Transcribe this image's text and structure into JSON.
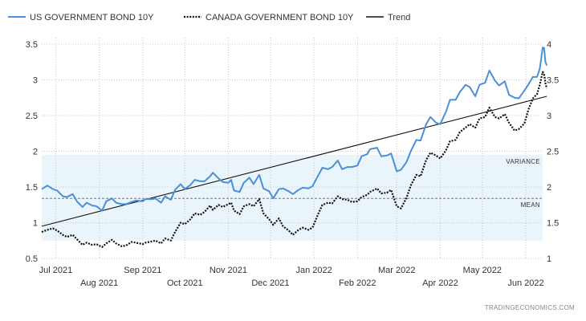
{
  "chart_data": {
    "type": "line",
    "x_start": "2021-06-21",
    "x_end": "2022-06-13",
    "x_ticks": [
      {
        "date": "2021-07-01",
        "label": "Jul 2021",
        "row": 1
      },
      {
        "date": "2021-08-01",
        "label": "Aug 2021",
        "row": 2
      },
      {
        "date": "2021-09-01",
        "label": "Sep 2021",
        "row": 1
      },
      {
        "date": "2021-10-01",
        "label": "Oct 2021",
        "row": 2
      },
      {
        "date": "2021-11-01",
        "label": "Nov 2021",
        "row": 1
      },
      {
        "date": "2021-12-01",
        "label": "Dec 2021",
        "row": 2
      },
      {
        "date": "2022-01-01",
        "label": "Jan 2022",
        "row": 1
      },
      {
        "date": "2022-02-01",
        "label": "Feb 2022",
        "row": 2
      },
      {
        "date": "2022-03-01",
        "label": "Mar 2022",
        "row": 1
      },
      {
        "date": "2022-04-01",
        "label": "Apr 2022",
        "row": 2
      },
      {
        "date": "2022-05-01",
        "label": "May 2022",
        "row": 1
      },
      {
        "date": "2022-06-01",
        "label": "Jun 2022",
        "row": 2
      }
    ],
    "y_left": {
      "min": 0.5,
      "max": 3.5,
      "ticks": [
        "0.5",
        "1",
        "1.5",
        "2",
        "2.5",
        "3",
        "3.5"
      ]
    },
    "y_right": {
      "min": 1,
      "max": 4,
      "ticks": [
        "1",
        "1.5",
        "2",
        "2.5",
        "3",
        "3.5",
        "4"
      ]
    },
    "grid": true,
    "legend_position": "top-left",
    "variance_band": {
      "low": 0.75,
      "high": 1.95,
      "label": "VARIANCE"
    },
    "mean": {
      "value": 1.34,
      "label": "MEAN"
    },
    "series": [
      {
        "name": "US GOVERNMENT BOND 10Y",
        "axis": "left",
        "color": "#4a90d9",
        "style": "solid",
        "points": [
          [
            "2021-06-21",
            1.47
          ],
          [
            "2021-06-25",
            1.52
          ],
          [
            "2021-06-29",
            1.47
          ],
          [
            "2021-07-02",
            1.45
          ],
          [
            "2021-07-06",
            1.37
          ],
          [
            "2021-07-09",
            1.36
          ],
          [
            "2021-07-13",
            1.4
          ],
          [
            "2021-07-16",
            1.3
          ],
          [
            "2021-07-20",
            1.22
          ],
          [
            "2021-07-23",
            1.28
          ],
          [
            "2021-07-27",
            1.24
          ],
          [
            "2021-07-30",
            1.23
          ],
          [
            "2021-08-03",
            1.17
          ],
          [
            "2021-08-06",
            1.3
          ],
          [
            "2021-08-10",
            1.34
          ],
          [
            "2021-08-13",
            1.28
          ],
          [
            "2021-08-17",
            1.26
          ],
          [
            "2021-08-20",
            1.26
          ],
          [
            "2021-08-24",
            1.29
          ],
          [
            "2021-08-27",
            1.31
          ],
          [
            "2021-09-01",
            1.3
          ],
          [
            "2021-09-03",
            1.33
          ],
          [
            "2021-09-08",
            1.33
          ],
          [
            "2021-09-10",
            1.34
          ],
          [
            "2021-09-14",
            1.28
          ],
          [
            "2021-09-17",
            1.37
          ],
          [
            "2021-09-21",
            1.32
          ],
          [
            "2021-09-24",
            1.46
          ],
          [
            "2021-09-28",
            1.54
          ],
          [
            "2021-10-01",
            1.47
          ],
          [
            "2021-10-05",
            1.53
          ],
          [
            "2021-10-08",
            1.6
          ],
          [
            "2021-10-12",
            1.58
          ],
          [
            "2021-10-15",
            1.58
          ],
          [
            "2021-10-19",
            1.65
          ],
          [
            "2021-10-21",
            1.7
          ],
          [
            "2021-10-25",
            1.62
          ],
          [
            "2021-10-28",
            1.57
          ],
          [
            "2021-11-01",
            1.56
          ],
          [
            "2021-11-03",
            1.6
          ],
          [
            "2021-11-05",
            1.45
          ],
          [
            "2021-11-09",
            1.43
          ],
          [
            "2021-11-12",
            1.56
          ],
          [
            "2021-11-16",
            1.63
          ],
          [
            "2021-11-19",
            1.54
          ],
          [
            "2021-11-23",
            1.67
          ],
          [
            "2021-11-26",
            1.48
          ],
          [
            "2021-11-30",
            1.44
          ],
          [
            "2021-12-03",
            1.34
          ],
          [
            "2021-12-07",
            1.47
          ],
          [
            "2021-12-10",
            1.48
          ],
          [
            "2021-12-14",
            1.44
          ],
          [
            "2021-12-17",
            1.4
          ],
          [
            "2021-12-21",
            1.46
          ],
          [
            "2021-12-24",
            1.49
          ],
          [
            "2021-12-28",
            1.48
          ],
          [
            "2021-12-31",
            1.51
          ],
          [
            "2022-01-04",
            1.66
          ],
          [
            "2022-01-07",
            1.77
          ],
          [
            "2022-01-11",
            1.75
          ],
          [
            "2022-01-14",
            1.78
          ],
          [
            "2022-01-18",
            1.87
          ],
          [
            "2022-01-21",
            1.75
          ],
          [
            "2022-01-25",
            1.78
          ],
          [
            "2022-01-28",
            1.78
          ],
          [
            "2022-02-01",
            1.8
          ],
          [
            "2022-02-04",
            1.93
          ],
          [
            "2022-02-08",
            1.96
          ],
          [
            "2022-02-10",
            2.03
          ],
          [
            "2022-02-15",
            2.05
          ],
          [
            "2022-02-18",
            1.93
          ],
          [
            "2022-02-22",
            1.94
          ],
          [
            "2022-02-25",
            1.97
          ],
          [
            "2022-03-01",
            1.72
          ],
          [
            "2022-03-04",
            1.74
          ],
          [
            "2022-03-08",
            1.85
          ],
          [
            "2022-03-11",
            2.0
          ],
          [
            "2022-03-15",
            2.16
          ],
          [
            "2022-03-18",
            2.15
          ],
          [
            "2022-03-22",
            2.38
          ],
          [
            "2022-03-25",
            2.48
          ],
          [
            "2022-03-29",
            2.4
          ],
          [
            "2022-04-01",
            2.38
          ],
          [
            "2022-04-05",
            2.55
          ],
          [
            "2022-04-08",
            2.72
          ],
          [
            "2022-04-12",
            2.72
          ],
          [
            "2022-04-15",
            2.83
          ],
          [
            "2022-04-19",
            2.93
          ],
          [
            "2022-04-22",
            2.9
          ],
          [
            "2022-04-26",
            2.77
          ],
          [
            "2022-04-29",
            2.93
          ],
          [
            "2022-05-03",
            2.96
          ],
          [
            "2022-05-06",
            3.13
          ],
          [
            "2022-05-10",
            2.99
          ],
          [
            "2022-05-13",
            2.92
          ],
          [
            "2022-05-17",
            2.98
          ],
          [
            "2022-05-20",
            2.79
          ],
          [
            "2022-05-24",
            2.75
          ],
          [
            "2022-05-27",
            2.74
          ],
          [
            "2022-05-31",
            2.85
          ],
          [
            "2022-06-03",
            2.94
          ],
          [
            "2022-06-06",
            3.04
          ],
          [
            "2022-06-09",
            3.04
          ],
          [
            "2022-06-11",
            3.16
          ],
          [
            "2022-06-13",
            3.45
          ],
          [
            "2022-06-14",
            3.45
          ],
          [
            "2022-06-15",
            3.25
          ],
          [
            "2022-06-16",
            3.2
          ]
        ]
      },
      {
        "name": "CANADA GOVERNMENT BOND 10Y",
        "axis": "right",
        "color": "#111111",
        "style": "dotted",
        "points": [
          [
            "2021-06-21",
            1.37
          ],
          [
            "2021-06-25",
            1.4
          ],
          [
            "2021-06-29",
            1.42
          ],
          [
            "2021-07-02",
            1.39
          ],
          [
            "2021-07-06",
            1.33
          ],
          [
            "2021-07-09",
            1.3
          ],
          [
            "2021-07-13",
            1.33
          ],
          [
            "2021-07-16",
            1.27
          ],
          [
            "2021-07-20",
            1.19
          ],
          [
            "2021-07-23",
            1.22
          ],
          [
            "2021-07-27",
            1.19
          ],
          [
            "2021-07-30",
            1.2
          ],
          [
            "2021-08-03",
            1.16
          ],
          [
            "2021-08-06",
            1.21
          ],
          [
            "2021-08-10",
            1.26
          ],
          [
            "2021-08-13",
            1.21
          ],
          [
            "2021-08-17",
            1.17
          ],
          [
            "2021-08-20",
            1.18
          ],
          [
            "2021-08-24",
            1.23
          ],
          [
            "2021-08-27",
            1.22
          ],
          [
            "2021-09-01",
            1.2
          ],
          [
            "2021-09-03",
            1.22
          ],
          [
            "2021-09-08",
            1.24
          ],
          [
            "2021-09-10",
            1.25
          ],
          [
            "2021-09-14",
            1.21
          ],
          [
            "2021-09-17",
            1.28
          ],
          [
            "2021-09-21",
            1.25
          ],
          [
            "2021-09-24",
            1.37
          ],
          [
            "2021-09-28",
            1.5
          ],
          [
            "2021-10-01",
            1.48
          ],
          [
            "2021-10-05",
            1.55
          ],
          [
            "2021-10-08",
            1.63
          ],
          [
            "2021-10-12",
            1.61
          ],
          [
            "2021-10-15",
            1.65
          ],
          [
            "2021-10-19",
            1.74
          ],
          [
            "2021-10-21",
            1.68
          ],
          [
            "2021-10-25",
            1.75
          ],
          [
            "2021-10-28",
            1.72
          ],
          [
            "2021-11-01",
            1.76
          ],
          [
            "2021-11-03",
            1.78
          ],
          [
            "2021-11-05",
            1.67
          ],
          [
            "2021-11-09",
            1.62
          ],
          [
            "2021-11-12",
            1.73
          ],
          [
            "2021-11-16",
            1.76
          ],
          [
            "2021-11-19",
            1.73
          ],
          [
            "2021-11-23",
            1.83
          ],
          [
            "2021-11-26",
            1.63
          ],
          [
            "2021-11-30",
            1.55
          ],
          [
            "2021-12-03",
            1.47
          ],
          [
            "2021-12-07",
            1.56
          ],
          [
            "2021-12-10",
            1.45
          ],
          [
            "2021-12-14",
            1.39
          ],
          [
            "2021-12-17",
            1.33
          ],
          [
            "2021-12-21",
            1.4
          ],
          [
            "2021-12-24",
            1.43
          ],
          [
            "2021-12-28",
            1.4
          ],
          [
            "2021-12-31",
            1.43
          ],
          [
            "2022-01-04",
            1.62
          ],
          [
            "2022-01-07",
            1.75
          ],
          [
            "2022-01-11",
            1.78
          ],
          [
            "2022-01-14",
            1.77
          ],
          [
            "2022-01-18",
            1.87
          ],
          [
            "2022-01-21",
            1.83
          ],
          [
            "2022-01-25",
            1.82
          ],
          [
            "2022-01-28",
            1.79
          ],
          [
            "2022-02-01",
            1.8
          ],
          [
            "2022-02-04",
            1.86
          ],
          [
            "2022-02-08",
            1.89
          ],
          [
            "2022-02-10",
            1.93
          ],
          [
            "2022-02-15",
            1.98
          ],
          [
            "2022-02-18",
            1.91
          ],
          [
            "2022-02-22",
            1.92
          ],
          [
            "2022-02-25",
            1.96
          ],
          [
            "2022-03-01",
            1.73
          ],
          [
            "2022-03-04",
            1.7
          ],
          [
            "2022-03-08",
            1.85
          ],
          [
            "2022-03-11",
            2.02
          ],
          [
            "2022-03-15",
            2.17
          ],
          [
            "2022-03-18",
            2.15
          ],
          [
            "2022-03-22",
            2.38
          ],
          [
            "2022-03-25",
            2.48
          ],
          [
            "2022-03-29",
            2.44
          ],
          [
            "2022-04-01",
            2.4
          ],
          [
            "2022-04-05",
            2.51
          ],
          [
            "2022-04-08",
            2.64
          ],
          [
            "2022-04-12",
            2.66
          ],
          [
            "2022-04-15",
            2.77
          ],
          [
            "2022-04-19",
            2.83
          ],
          [
            "2022-04-22",
            2.88
          ],
          [
            "2022-04-26",
            2.83
          ],
          [
            "2022-04-29",
            2.96
          ],
          [
            "2022-05-03",
            2.98
          ],
          [
            "2022-05-06",
            3.11
          ],
          [
            "2022-05-10",
            2.98
          ],
          [
            "2022-05-13",
            2.96
          ],
          [
            "2022-05-17",
            3.02
          ],
          [
            "2022-05-20",
            2.9
          ],
          [
            "2022-05-24",
            2.79
          ],
          [
            "2022-05-27",
            2.81
          ],
          [
            "2022-05-31",
            2.89
          ],
          [
            "2022-06-03",
            3.09
          ],
          [
            "2022-06-06",
            3.24
          ],
          [
            "2022-06-09",
            3.3
          ],
          [
            "2022-06-11",
            3.43
          ],
          [
            "2022-06-13",
            3.61
          ],
          [
            "2022-06-14",
            3.59
          ],
          [
            "2022-06-15",
            3.45
          ],
          [
            "2022-06-16",
            3.38
          ]
        ]
      },
      {
        "name": "Trend",
        "axis": "left",
        "color": "#111111",
        "style": "solid",
        "points": [
          [
            "2021-06-21",
            0.95
          ],
          [
            "2022-06-16",
            2.77
          ]
        ]
      }
    ]
  },
  "source": "TRADINGECONOMICS.COM"
}
